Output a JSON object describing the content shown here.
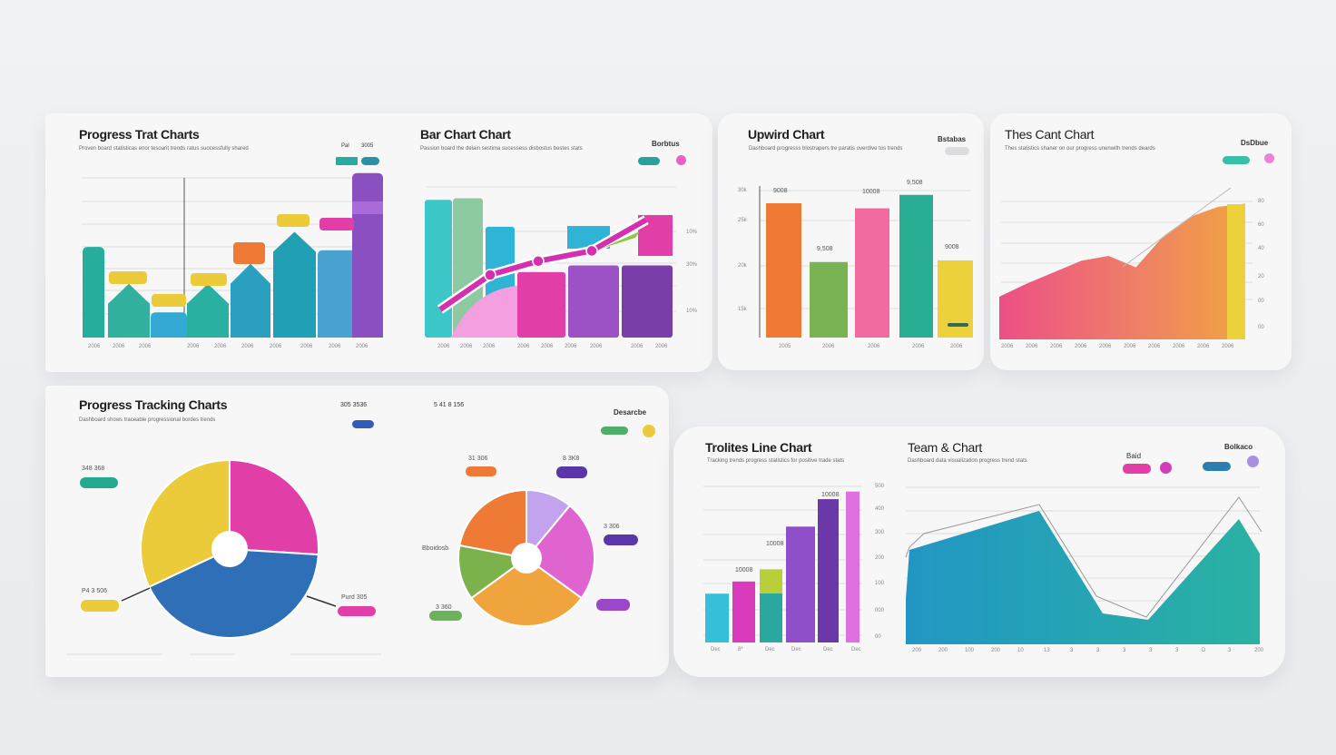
{
  "cards": [
    {
      "title": "Progress Trat Charts",
      "subtitle": "Proven board statisticas enor tesoarit trends ratus suocessfully shared",
      "legend": [
        "Pal",
        "3005"
      ]
    },
    {
      "title": "Bar Chart Chart",
      "subtitle": "Passion board the delain sestima sucessess disbostus bestes stats",
      "legend": [
        "Borbtus"
      ]
    },
    {
      "title": "Upwird Chart",
      "subtitle": "Dashboard progresss blostrapers tre paratis overdive tos trends",
      "legend": [
        "Bstabas"
      ]
    },
    {
      "title": "Thes Cant Chart",
      "subtitle": "Thes statistics shaner on our progress unenwith trends deards",
      "legend": [
        "DsDbue"
      ]
    },
    {
      "title": "Progress Tracking Charts",
      "subtitle": "Dashboard shows traceable progressional bordes trends",
      "legend": [
        "305 3536",
        "5 41 8 156",
        "Desarcbe"
      ]
    },
    {
      "title": "Trolites Line Chart",
      "subtitle": "Tracking trends progress statistics for positive trade stats",
      "legend": []
    },
    {
      "title": "Team & Chart",
      "subtitle": "Dashboard data visualization progress trend stats",
      "legend": [
        "Baid",
        "Bolkaco"
      ]
    }
  ],
  "colors": {
    "teal": "#2aab9f",
    "blue": "#2f9fc4",
    "purple": "#8a4fc0",
    "pink": "#e23ea8",
    "yellow": "#eccb3a",
    "orange": "#ee7a35",
    "green": "#79b352",
    "lavender": "#c3a3ee"
  },
  "chart_data": [
    {
      "type": "bar",
      "title": "Progress Trat Charts",
      "categories": [
        "2006",
        "2006",
        "2006",
        "2006",
        "2006",
        "2006",
        "2006",
        "2006"
      ],
      "values": [
        54,
        32,
        15,
        32,
        44,
        63,
        52,
        98
      ],
      "ylim": [
        0,
        100
      ],
      "grid": true
    },
    {
      "type": "bar",
      "title": "Bar Chart Chart",
      "categories": [
        "2006",
        "2006",
        "2006",
        "2006",
        "2006",
        "2006"
      ],
      "values": [
        82,
        83,
        66,
        39,
        43,
        43
      ],
      "line": [
        10,
        30,
        38,
        44,
        62
      ],
      "yticks": [
        "10%",
        "30%",
        "10%"
      ],
      "ylim": [
        0,
        100
      ],
      "grid": true
    },
    {
      "type": "bar",
      "title": "Upwird Chart",
      "categories": [
        "2005",
        "2006",
        "2006",
        "2006",
        "2006"
      ],
      "values": [
        80,
        45,
        77,
        85,
        46
      ],
      "data_labels": [
        "9008",
        "9,508",
        "10008",
        "9,508",
        "9008"
      ],
      "yticks": [
        "30k",
        "25k",
        "20k",
        "15k"
      ],
      "ylim": [
        0,
        100
      ]
    },
    {
      "type": "area",
      "title": "Thes Cant Chart",
      "x": [
        1,
        2,
        3,
        4,
        5,
        6,
        7,
        8,
        9,
        10
      ],
      "values": [
        25,
        33,
        40,
        47,
        50,
        43,
        62,
        74,
        80,
        82
      ],
      "yticks": [
        "80",
        "60",
        "40",
        "20",
        "00",
        "00"
      ],
      "ylim": [
        0,
        100
      ]
    },
    {
      "type": "pie",
      "title": "Progress Tracking Charts",
      "labels": [
        "Pink",
        "Blue",
        "Yellow"
      ],
      "values": [
        26,
        42,
        32
      ],
      "data_labels": [
        "348 368",
        "P4 3 506",
        "Purd 305"
      ]
    },
    {
      "type": "pie",
      "title": "Progress Tracking Charts 2",
      "labels": [
        "Lavender",
        "Pink",
        "Orange-yellow",
        "Green",
        "Orange"
      ],
      "values": [
        11,
        24,
        30,
        13,
        22
      ],
      "data_labels": [
        "31 306",
        "8 3K8",
        "3 360",
        "3 306",
        "Bboidosb"
      ]
    },
    {
      "type": "bar",
      "title": "Trolites Line Chart",
      "categories": [
        "Dec",
        "8*",
        "Dec",
        "Dec",
        "Dec",
        "Dec"
      ],
      "values": [
        32,
        40,
        48,
        76,
        94,
        99
      ],
      "stack_base": [
        0,
        0,
        32,
        0,
        0,
        0
      ],
      "yticks": [
        "500",
        "400",
        "300",
        "200",
        "100",
        "000",
        "00"
      ],
      "ylim": [
        0,
        100
      ]
    },
    {
      "type": "area",
      "title": "Team & Chart",
      "x": [
        1,
        2,
        3,
        4,
        5,
        6,
        7,
        8
      ],
      "values": [
        38,
        63,
        90,
        12,
        16,
        85,
        66,
        0
      ],
      "xticks": [
        "200",
        "200",
        "100",
        "200",
        "10",
        "13",
        "3",
        "3",
        "3",
        "3",
        "3",
        "D",
        "3",
        "200"
      ],
      "ylim": [
        0,
        100
      ]
    }
  ]
}
